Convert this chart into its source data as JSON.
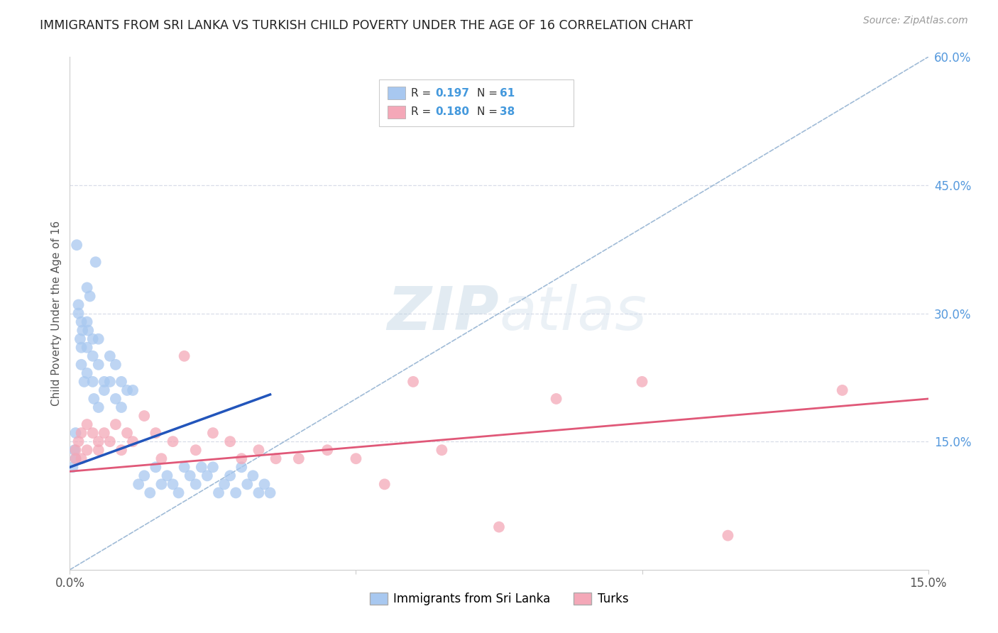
{
  "title": "IMMIGRANTS FROM SRI LANKA VS TURKISH CHILD POVERTY UNDER THE AGE OF 16 CORRELATION CHART",
  "source": "Source: ZipAtlas.com",
  "ylabel": "Child Poverty Under the Age of 16",
  "legend_label1": "Immigrants from Sri Lanka",
  "legend_label2": "Turks",
  "r1": 0.197,
  "n1": 61,
  "r2": 0.18,
  "n2": 38,
  "color1": "#a8c8f0",
  "color2": "#f4a8b8",
  "line1_color": "#2255bb",
  "line2_color": "#e05878",
  "dashed_line_color": "#90b0d0",
  "background_color": "#ffffff",
  "grid_color": "#d8dde8",
  "xlim": [
    0.0,
    0.15
  ],
  "ylim": [
    0.0,
    0.6
  ],
  "sri_lanka_x": [
    0.0005,
    0.0008,
    0.001,
    0.001,
    0.0012,
    0.0015,
    0.0015,
    0.0018,
    0.002,
    0.002,
    0.002,
    0.0022,
    0.0025,
    0.003,
    0.003,
    0.003,
    0.003,
    0.0032,
    0.0035,
    0.004,
    0.004,
    0.004,
    0.0042,
    0.0045,
    0.005,
    0.005,
    0.005,
    0.006,
    0.006,
    0.007,
    0.007,
    0.008,
    0.008,
    0.009,
    0.009,
    0.01,
    0.011,
    0.012,
    0.013,
    0.014,
    0.015,
    0.016,
    0.017,
    0.018,
    0.019,
    0.02,
    0.021,
    0.022,
    0.023,
    0.024,
    0.025,
    0.026,
    0.027,
    0.028,
    0.029,
    0.03,
    0.031,
    0.032,
    0.033,
    0.034,
    0.035
  ],
  "sri_lanka_y": [
    0.12,
    0.14,
    0.16,
    0.13,
    0.38,
    0.3,
    0.31,
    0.27,
    0.29,
    0.26,
    0.24,
    0.28,
    0.22,
    0.33,
    0.29,
    0.26,
    0.23,
    0.28,
    0.32,
    0.22,
    0.27,
    0.25,
    0.2,
    0.36,
    0.19,
    0.27,
    0.24,
    0.22,
    0.21,
    0.25,
    0.22,
    0.24,
    0.2,
    0.22,
    0.19,
    0.21,
    0.21,
    0.1,
    0.11,
    0.09,
    0.12,
    0.1,
    0.11,
    0.1,
    0.09,
    0.12,
    0.11,
    0.1,
    0.12,
    0.11,
    0.12,
    0.09,
    0.1,
    0.11,
    0.09,
    0.12,
    0.1,
    0.11,
    0.09,
    0.1,
    0.09
  ],
  "turks_x": [
    0.001,
    0.001,
    0.0015,
    0.002,
    0.002,
    0.003,
    0.003,
    0.004,
    0.005,
    0.005,
    0.006,
    0.007,
    0.008,
    0.009,
    0.01,
    0.011,
    0.013,
    0.015,
    0.016,
    0.018,
    0.02,
    0.022,
    0.025,
    0.028,
    0.03,
    0.033,
    0.036,
    0.04,
    0.045,
    0.05,
    0.055,
    0.06,
    0.065,
    0.075,
    0.085,
    0.1,
    0.115,
    0.135
  ],
  "turks_y": [
    0.14,
    0.13,
    0.15,
    0.16,
    0.13,
    0.17,
    0.14,
    0.16,
    0.15,
    0.14,
    0.16,
    0.15,
    0.17,
    0.14,
    0.16,
    0.15,
    0.18,
    0.16,
    0.13,
    0.15,
    0.25,
    0.14,
    0.16,
    0.15,
    0.13,
    0.14,
    0.13,
    0.13,
    0.14,
    0.13,
    0.1,
    0.22,
    0.14,
    0.05,
    0.2,
    0.22,
    0.04,
    0.21
  ],
  "blue_line_x": [
    0.0,
    0.035
  ],
  "blue_line_y": [
    0.12,
    0.205
  ]
}
